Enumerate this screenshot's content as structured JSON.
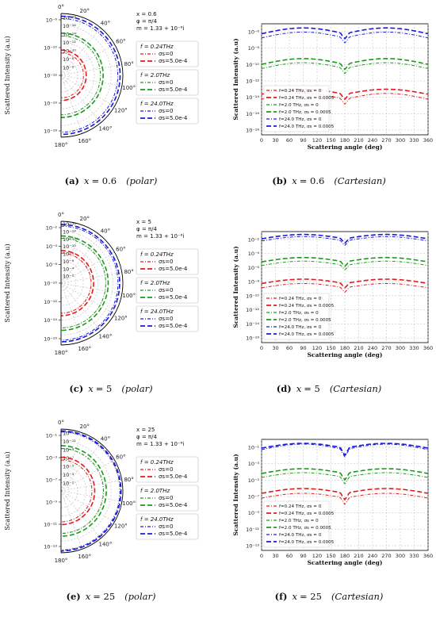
{
  "captions": [
    {
      "tag": "(a)",
      "x_label": "x",
      "x_value": "= 0.6",
      "mode": "(polar)"
    },
    {
      "tag": "(b)",
      "x_label": "x",
      "x_value": "= 0.6",
      "mode": "(Cartesian)"
    },
    {
      "tag": "(c)",
      "x_label": "x",
      "x_value": "= 5",
      "mode": "(polar)"
    },
    {
      "tag": "(d)",
      "x_label": "x",
      "x_value": "= 5",
      "mode": "(Cartesian)"
    },
    {
      "tag": "(e)",
      "x_label": "x",
      "x_value": "= 25",
      "mode": "(polar)"
    },
    {
      "tag": "(f)",
      "x_label": "x",
      "x_value": "= 25",
      "mode": "(Cartesian)"
    }
  ],
  "common": {
    "ylabel": "Scattered Intensity (a.u)",
    "cart_ylabel": "Scattered Intensity (a.u)",
    "cart_xlabel": "Scattering angle (deg)",
    "polar_angle_labels": [
      "0°",
      "20°",
      "40°",
      "60°",
      "80°",
      "100°",
      "120°",
      "140°",
      "160°",
      "180°"
    ],
    "cart_xticks": [
      "0",
      "30",
      "60",
      "90",
      "120",
      "150",
      "180",
      "210",
      "240",
      "270",
      "300",
      "330",
      "360"
    ],
    "phi_text": "φ = π/4",
    "m_text": "m = 1.33 + 10⁻⁶i",
    "polar_legend_groups": [
      {
        "head": "f = 0.24THz",
        "entries": [
          "σs=0",
          "σs=5.0e-4"
        ]
      },
      {
        "head": "f = 2.0THz",
        "entries": [
          "σs=0",
          "σs=5.0e-4"
        ]
      },
      {
        "head": "f = 24.0THz",
        "entries": [
          "σs=0",
          "σs=5.0e-4"
        ]
      }
    ],
    "cart_legend": [
      "f=0.24 THz, σs = 0",
      "f=0.24 THz, σs = 0.0005",
      "f=2.0 THz, σs = 0",
      "f=2.0 THz, σs = 0.0005",
      "f=24.0 THz, σs = 0",
      "f=24.0 THz, σs = 0.0005"
    ],
    "colors": {
      "red": "#e31a1c",
      "green": "#1a9a1a",
      "blue": "#1a1adc"
    }
  },
  "chart_data": [
    {
      "type": "line",
      "coords": "polar",
      "x_text": "x = 0.6",
      "radial_ticks": [
        "10⁻⁶",
        "10⁻⁸",
        "10⁻¹⁰",
        "10⁻¹²",
        "10⁻¹⁴",
        "10⁻¹⁶",
        "10⁻¹⁸"
      ],
      "axis_ticks": [
        "10⁻⁶",
        "10⁻¹⁰",
        "10⁻¹²",
        "10⁻¹⁶",
        "10⁻¹⁸"
      ],
      "rlim_log10": [
        -19,
        -5.5
      ],
      "series": [
        {
          "name": "f = 0.24THz, σs=0",
          "log10_intensity": -14.1
        },
        {
          "name": "f = 0.24THz, σs=5.0e-4",
          "log10_intensity": -13.5
        },
        {
          "name": "f = 2.0THz, σs=0",
          "log10_intensity": -10.4
        },
        {
          "name": "f = 2.0THz, σs=5.0e-4",
          "log10_intensity": -9.8
        },
        {
          "name": "f = 24.0THz, σs=0",
          "log10_intensity": -6.6
        },
        {
          "name": "f = 24.0THz, σs=5.0e-4",
          "log10_intensity": -6.1
        }
      ]
    },
    {
      "type": "line",
      "coords": "cartesian",
      "x": [
        0,
        360
      ],
      "xlim": [
        0,
        360
      ],
      "ylim_log10": [
        -18,
        -4.6
      ],
      "yticks": [
        "10⁻⁶",
        "10⁻⁸",
        "10⁻¹⁰",
        "10⁻¹²",
        "10⁻¹⁴",
        "10⁻¹⁶",
        "10⁻¹⁸"
      ],
      "series": [
        {
          "name": "f=0.24 THz, σs = 0",
          "base": -13.7,
          "peak": -13.0,
          "notch": -14.3
        },
        {
          "name": "f=0.24 THz, σs = 0.0005",
          "base": -13.1,
          "peak": -12.5,
          "notch": -13.7
        },
        {
          "name": "f=2.0 THz, σs = 0",
          "base": -10.0,
          "peak": -9.3,
          "notch": -10.6
        },
        {
          "name": "f=2.0 THz, σs = 0.0005",
          "base": -9.5,
          "peak": -8.8,
          "notch": -10.1
        },
        {
          "name": "f=24.0 THz, σs = 0",
          "base": -6.3,
          "peak": -5.6,
          "notch": -6.9
        },
        {
          "name": "f=24.0 THz, σs = 0.0005",
          "base": -5.8,
          "peak": -5.1,
          "notch": -6.4
        }
      ]
    },
    {
      "type": "line",
      "coords": "polar",
      "x_text": "x = 5",
      "radial_ticks": [
        "10⁻²",
        "10⁻⁴",
        "10⁻⁶",
        "10⁻⁸",
        "10⁻¹⁰",
        "10⁻¹²",
        "10⁻¹⁴",
        "10⁻¹⁶"
      ],
      "axis_ticks": [
        "10⁻²",
        "10⁻⁴",
        "10⁻⁸",
        "10⁻¹⁰",
        "10⁻¹²",
        "10⁻¹⁴",
        "10⁻¹⁶"
      ],
      "rlim_log10": [
        -17,
        -1.8
      ],
      "series": [
        {
          "name": "f = 0.24THz, σs=0",
          "log10_intensity": -9.6
        },
        {
          "name": "f = 0.24THz, σs=5.0e-4",
          "log10_intensity": -9.0
        },
        {
          "name": "f = 2.0THz, σs=0",
          "log10_intensity": -6.0
        },
        {
          "name": "f = 2.0THz, σs=5.0e-4",
          "log10_intensity": -5.4
        },
        {
          "name": "f = 24.0THz, σs=0",
          "log10_intensity": -3.0
        },
        {
          "name": "f = 24.0THz, σs=5.0e-4",
          "log10_intensity": -2.6
        }
      ]
    },
    {
      "type": "line",
      "coords": "cartesian",
      "x": [
        0,
        360
      ],
      "xlim": [
        0,
        360
      ],
      "ylim_log10": [
        -17,
        -1.6
      ],
      "yticks": [
        "10⁻²",
        "10⁻⁴",
        "10⁻⁶",
        "10⁻⁸",
        "10⁻¹⁰",
        "10⁻¹²",
        "10⁻¹⁴",
        "10⁻¹⁶"
      ],
      "series": [
        {
          "name": "f=0.24 THz, σs = 0",
          "base": -9.4,
          "peak": -8.8,
          "notch": -10.0
        },
        {
          "name": "f=0.24 THz, σs = 0.0005",
          "base": -8.8,
          "peak": -8.2,
          "notch": -9.4
        },
        {
          "name": "f=2.0 THz, σs = 0",
          "base": -6.3,
          "peak": -5.7,
          "notch": -6.9
        },
        {
          "name": "f=2.0 THz, σs = 0.0005",
          "base": -5.8,
          "peak": -5.2,
          "notch": -6.4
        },
        {
          "name": "f=24.0 THz, σs = 0",
          "base": -2.9,
          "peak": -2.3,
          "notch": -3.5
        },
        {
          "name": "f=24.0 THz, σs = 0.0005",
          "base": -2.6,
          "peak": -2.0,
          "notch": -3.2
        }
      ]
    },
    {
      "type": "line",
      "coords": "polar",
      "x_text": "x = 25",
      "radial_ticks": [
        "10⁻¹",
        "10⁻³",
        "10⁻⁵",
        "10⁻⁷",
        "10⁻⁹",
        "10⁻¹¹",
        "10⁻¹³"
      ],
      "axis_ticks": [
        "10⁻¹",
        "10⁻³",
        "10⁻⁷",
        "10⁻⁹",
        "10⁻¹¹",
        "10⁻¹³"
      ],
      "rlim_log10": [
        -14,
        -0.6
      ],
      "series": [
        {
          "name": "f = 0.24THz, σs=0",
          "log10_intensity": -7.3
        },
        {
          "name": "f = 0.24THz, σs=5.0e-4",
          "log10_intensity": -6.7
        },
        {
          "name": "f = 2.0THz, σs=0",
          "log10_intensity": -4.8
        },
        {
          "name": "f = 2.0THz, σs=5.0e-4",
          "log10_intensity": -4.2
        },
        {
          "name": "f = 24.0THz, σs=0",
          "log10_intensity": -1.2
        },
        {
          "name": "f = 24.0THz, σs=5.0e-4",
          "log10_intensity": -1.0
        }
      ]
    },
    {
      "type": "line",
      "coords": "cartesian",
      "x": [
        0,
        360
      ],
      "xlim": [
        0,
        360
      ],
      "ylim_log10": [
        -14,
        0
      ],
      "yticks": [
        "10⁻¹",
        "10⁻³",
        "10⁻⁵",
        "10⁻⁷",
        "10⁻⁹",
        "10⁻¹¹",
        "10⁻¹³"
      ],
      "series": [
        {
          "name": "f=0.24 THz, σs = 0",
          "base": -7.4,
          "peak": -6.8,
          "notch": -8.2
        },
        {
          "name": "f=0.24 THz, σs = 0.0005",
          "base": -6.8,
          "peak": -6.2,
          "notch": -7.6
        },
        {
          "name": "f=2.0 THz, σs = 0",
          "base": -4.8,
          "peak": -4.2,
          "notch": -5.6
        },
        {
          "name": "f=2.0 THz, σs = 0.0005",
          "base": -4.3,
          "peak": -3.7,
          "notch": -5.1
        },
        {
          "name": "f=24.0 THz, σs = 0",
          "base": -1.3,
          "peak": -0.6,
          "notch": -2.2
        },
        {
          "name": "f=24.0 THz, σs = 0.0005",
          "base": -1.1,
          "peak": -0.5,
          "notch": -2.0
        }
      ]
    }
  ]
}
